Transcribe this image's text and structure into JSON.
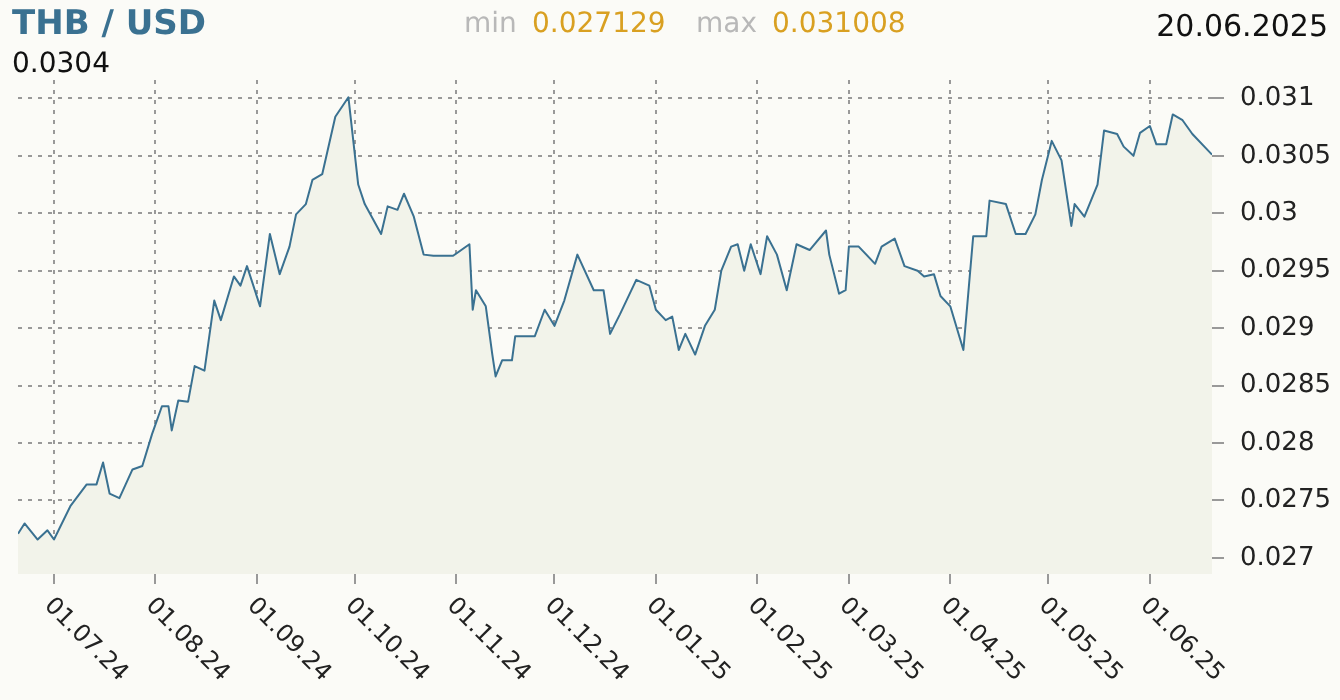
{
  "chart_data": {
    "type": "area",
    "title": "THB / USD",
    "annotations": [
      "0.0304",
      "min",
      "0.027129",
      "max",
      "0.031008",
      "20.06.2025"
    ],
    "x": [
      "2024-06-20",
      "2024-06-22",
      "2024-06-26",
      "2024-06-29",
      "2024-07-01",
      "2024-07-06",
      "2024-07-11",
      "2024-07-14",
      "2024-07-16",
      "2024-07-18",
      "2024-07-21",
      "2024-07-25",
      "2024-07-28",
      "2024-07-31",
      "2024-08-03",
      "2024-08-05",
      "2024-08-06",
      "2024-08-08",
      "2024-08-11",
      "2024-08-13",
      "2024-08-16",
      "2024-08-19",
      "2024-08-21",
      "2024-08-25",
      "2024-08-27",
      "2024-08-29",
      "2024-09-02",
      "2024-09-05",
      "2024-09-08",
      "2024-09-11",
      "2024-09-13",
      "2024-09-16",
      "2024-09-18",
      "2024-09-21",
      "2024-09-25",
      "2024-09-29",
      "2024-10-02",
      "2024-10-04",
      "2024-10-09",
      "2024-10-11",
      "2024-10-14",
      "2024-10-16",
      "2024-10-19",
      "2024-10-22",
      "2024-10-25",
      "2024-10-31",
      "2024-11-05",
      "2024-11-06",
      "2024-11-07",
      "2024-11-10",
      "2024-11-12",
      "2024-11-13",
      "2024-11-15",
      "2024-11-18",
      "2024-11-19",
      "2024-11-25",
      "2024-11-28",
      "2024-12-01",
      "2024-12-04",
      "2024-12-08",
      "2024-12-13",
      "2024-12-16",
      "2024-12-18",
      "2024-12-21",
      "2024-12-26",
      "2024-12-30",
      "2025-01-01",
      "2025-01-04",
      "2025-01-06",
      "2025-01-08",
      "2025-01-10",
      "2025-01-13",
      "2025-01-16",
      "2025-01-19",
      "2025-01-21",
      "2025-01-24",
      "2025-01-26",
      "2025-01-28",
      "2025-01-30",
      "2025-02-02",
      "2025-02-04",
      "2025-02-07",
      "2025-02-10",
      "2025-02-13",
      "2025-02-17",
      "2025-02-22",
      "2025-02-23",
      "2025-02-26",
      "2025-02-28",
      "2025-03-01",
      "2025-03-04",
      "2025-03-09",
      "2025-03-11",
      "2025-03-15",
      "2025-03-18",
      "2025-03-22",
      "2025-03-24",
      "2025-03-27",
      "2025-03-29",
      "2025-04-01",
      "2025-04-05",
      "2025-04-08",
      "2025-04-12",
      "2025-04-13",
      "2025-04-18",
      "2025-04-21",
      "2025-04-24",
      "2025-04-27",
      "2025-04-29",
      "2025-05-02",
      "2025-05-05",
      "2025-05-08",
      "2025-05-09",
      "2025-05-12",
      "2025-05-16",
      "2025-05-18",
      "2025-05-22",
      "2025-05-24",
      "2025-05-27",
      "2025-05-29",
      "2025-06-01",
      "2025-06-03",
      "2025-06-06",
      "2025-06-08",
      "2025-06-11",
      "2025-06-14",
      "2025-06-20"
    ],
    "series": [
      {
        "color": "#3a7191",
        "values": [
          0.02721,
          0.0273,
          0.02716,
          0.02724,
          0.02716,
          0.02745,
          0.02764,
          0.02764,
          0.02783,
          0.02756,
          0.02752,
          0.02777,
          0.0278,
          0.02808,
          0.02832,
          0.02832,
          0.02811,
          0.02837,
          0.02836,
          0.02867,
          0.02863,
          0.02924,
          0.02907,
          0.02945,
          0.02937,
          0.02954,
          0.02919,
          0.02982,
          0.02947,
          0.02971,
          0.02999,
          0.03008,
          0.03029,
          0.03034,
          0.03084,
          0.03101,
          0.03025,
          0.03008,
          0.02982,
          0.03006,
          0.03003,
          0.03017,
          0.02997,
          0.02964,
          0.02963,
          0.02963,
          0.02973,
          0.02916,
          0.02933,
          0.02919,
          0.02877,
          0.02858,
          0.02872,
          0.02872,
          0.02893,
          0.02893,
          0.02916,
          0.02902,
          0.02924,
          0.02964,
          0.02933,
          0.02933,
          0.02895,
          0.02912,
          0.02942,
          0.02937,
          0.02916,
          0.02907,
          0.0291,
          0.02881,
          0.02895,
          0.02877,
          0.02902,
          0.02916,
          0.0295,
          0.02971,
          0.02973,
          0.0295,
          0.02973,
          0.02947,
          0.0298,
          0.02964,
          0.02933,
          0.02973,
          0.02968,
          0.02985,
          0.02964,
          0.0293,
          0.02933,
          0.02971,
          0.02971,
          0.02956,
          0.02971,
          0.02978,
          0.02954,
          0.0295,
          0.02945,
          0.02947,
          0.02928,
          0.02919,
          0.02881,
          0.0298,
          0.0298,
          0.03011,
          0.03008,
          0.02982,
          0.02982,
          0.02999,
          0.03029,
          0.03063,
          0.03046,
          0.02989,
          0.03008,
          0.02997,
          0.03025,
          0.03072,
          0.03069,
          0.03058,
          0.0305,
          0.0307,
          0.03076,
          0.0306,
          0.0306,
          0.03086,
          0.03081,
          0.03069,
          0.03051
        ]
      }
    ],
    "xlim": [
      "2024-06-20",
      "2025-06-20"
    ],
    "xticks": [
      {
        "value": "2024-07-01",
        "label": "01.07.24"
      },
      {
        "value": "2024-08-01",
        "label": "01.08.24"
      },
      {
        "value": "2024-09-01",
        "label": "01.09.24"
      },
      {
        "value": "2024-10-01",
        "label": "01.10.24"
      },
      {
        "value": "2024-11-01",
        "label": "01.11.24"
      },
      {
        "value": "2024-12-01",
        "label": "01.12.24"
      },
      {
        "value": "2025-01-01",
        "label": "01.01.25"
      },
      {
        "value": "2025-02-01",
        "label": "01.02.25"
      },
      {
        "value": "2025-03-01",
        "label": "01.03.25"
      },
      {
        "value": "2025-04-01",
        "label": "01.04.25"
      },
      {
        "value": "2025-05-01",
        "label": "01.05.25"
      },
      {
        "value": "2025-06-01",
        "label": "01.06.25"
      }
    ],
    "ylim": [
      0.02686,
      0.03116
    ],
    "yticks": [
      0.027,
      0.0275,
      0.028,
      0.0285,
      0.029,
      0.0295,
      0.03,
      0.0305,
      0.031
    ],
    "grid": true,
    "legend": false,
    "marker": "none",
    "line_style": "solid"
  }
}
